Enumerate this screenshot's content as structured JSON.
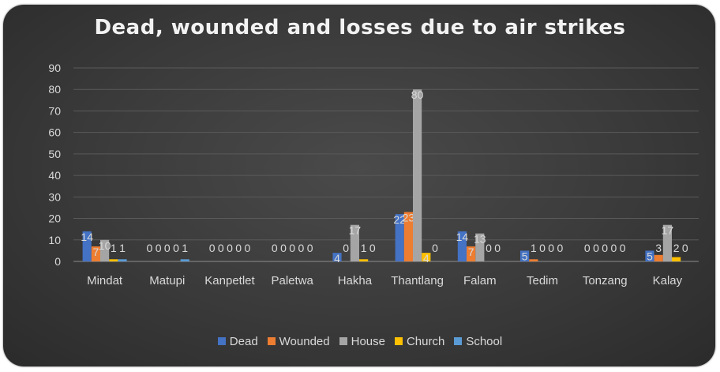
{
  "colors": {
    "Dead": "#4472c4",
    "Wounded": "#ed7d31",
    "House": "#a5a5a5",
    "Church": "#ffc000",
    "School": "#5b9bd5"
  },
  "chart_data": {
    "type": "bar",
    "title": "Dead, wounded and losses due to air strikes",
    "xlabel": "",
    "ylabel": "",
    "ylim": [
      0,
      90
    ],
    "yticks": [
      0,
      10,
      20,
      30,
      40,
      50,
      60,
      70,
      80,
      90
    ],
    "grid": true,
    "legend_position": "bottom",
    "categories": [
      "Mindat",
      "Matupi",
      "Kanpetlet",
      "Paletwa",
      "Hakha",
      "Thantlang",
      "Falam",
      "Tedim",
      "Tonzang",
      "Kalay"
    ],
    "series": [
      {
        "name": "Dead",
        "values": [
          14,
          0,
          0,
          0,
          4,
          22,
          14,
          5,
          0,
          5
        ]
      },
      {
        "name": "Wounded",
        "values": [
          7,
          0,
          0,
          0,
          0,
          23,
          7,
          1,
          0,
          3
        ]
      },
      {
        "name": "House",
        "values": [
          10,
          0,
          0,
          0,
          17,
          80,
          13,
          0,
          0,
          17
        ]
      },
      {
        "name": "Church",
        "values": [
          1,
          0,
          0,
          0,
          1,
          4,
          0,
          0,
          0,
          2
        ]
      },
      {
        "name": "School",
        "values": [
          1,
          1,
          0,
          0,
          0,
          0,
          0,
          0,
          0,
          0
        ]
      }
    ]
  }
}
